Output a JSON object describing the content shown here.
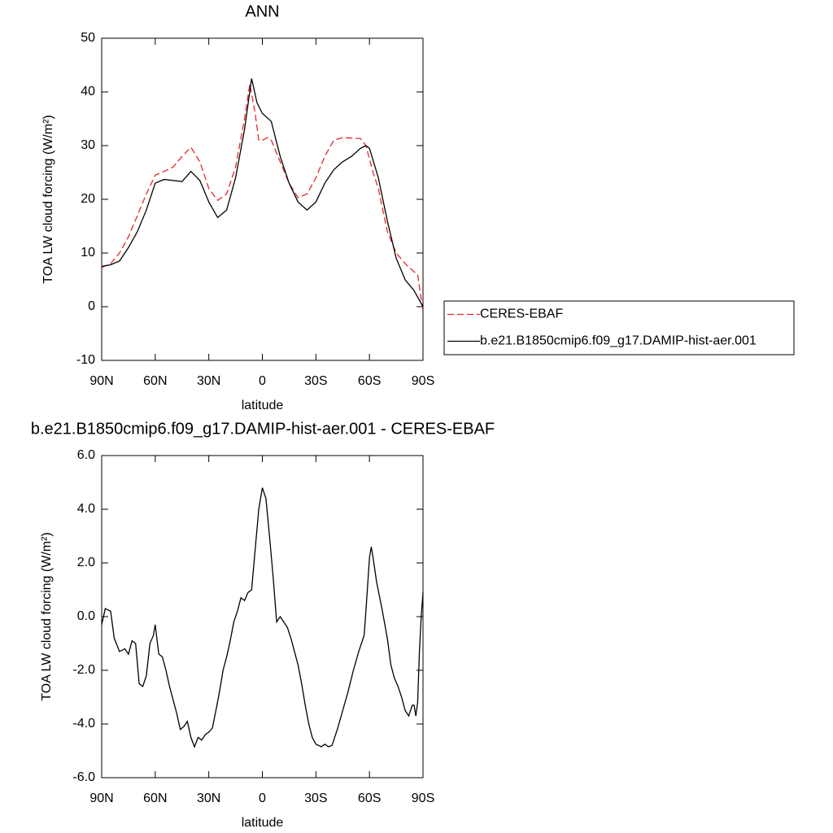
{
  "chart_data": [
    {
      "type": "line",
      "title": "ANN",
      "x_label": "latitude",
      "y_label": "TOA LW cloud forcing (W/m²)",
      "xlim": [
        90,
        -90
      ],
      "xticks": [
        {
          "value": 90,
          "label": "90N"
        },
        {
          "value": 60,
          "label": "60N"
        },
        {
          "value": 30,
          "label": "30N"
        },
        0,
        {
          "value": -30,
          "label": "30S"
        },
        {
          "value": -60,
          "label": "60S"
        },
        {
          "value": -90,
          "label": "90S"
        }
      ],
      "ylim": [
        -10,
        50
      ],
      "yticks": [
        -10,
        0,
        10,
        20,
        30,
        40,
        50
      ],
      "legend": "right",
      "series": [
        {
          "name": "CERES-EBAF",
          "color": "#e8262b",
          "dash": true,
          "x": [
            90,
            85,
            80,
            75,
            70,
            65,
            60,
            55,
            50,
            45,
            40,
            35,
            30,
            25,
            20,
            15,
            10,
            7,
            4,
            2,
            0,
            -3,
            -5,
            -10,
            -15,
            -20,
            -25,
            -30,
            -35,
            -40,
            -45,
            -55,
            -58,
            -62,
            -65,
            -70,
            -75,
            -80,
            -85,
            -87,
            -90
          ],
          "values": [
            7.3,
            8,
            10,
            13,
            17,
            21,
            24.5,
            25.2,
            26,
            28,
            29.7,
            27,
            22,
            19.8,
            21,
            26,
            35,
            41.5,
            36,
            31,
            31,
            31.5,
            31,
            27,
            23,
            20.3,
            21,
            24,
            28,
            31,
            31.5,
            31.3,
            30,
            25,
            22,
            14,
            10,
            8,
            6.5,
            6,
            -1
          ]
        },
        {
          "name": "b.e21.B1850cmip6.f09_g17.DAMIP-hist-aer.001",
          "color": "#000000",
          "dash": false,
          "x": [
            90,
            85,
            80,
            75,
            70,
            65,
            60,
            55,
            50,
            45,
            40,
            35,
            30,
            25,
            20,
            15,
            10,
            6,
            3,
            0,
            -5,
            -10,
            -15,
            -20,
            -25,
            -30,
            -35,
            -40,
            -45,
            -50,
            -55,
            -58,
            -60,
            -65,
            -70,
            -75,
            -80,
            -85,
            -90
          ],
          "values": [
            7.5,
            7.8,
            8.5,
            11,
            14,
            18,
            23,
            23.7,
            23.5,
            23.3,
            25.2,
            23.5,
            19.5,
            16.6,
            18,
            24,
            33,
            42.5,
            38,
            36,
            34.5,
            28,
            23,
            19.5,
            18,
            19.5,
            23,
            25.5,
            27,
            28,
            29.5,
            30,
            29.5,
            24,
            16,
            9,
            5,
            3,
            0
          ]
        }
      ]
    },
    {
      "type": "line",
      "title": "b.e21.B1850cmip6.f09_g17.DAMIP-hist-aer.001 - CERES-EBAF",
      "x_label": "latitude",
      "y_label": "TOA LW cloud forcing (W/m²)",
      "xlim": [
        90,
        -90
      ],
      "xticks": [
        {
          "value": 90,
          "label": "90N"
        },
        {
          "value": 60,
          "label": "60N"
        },
        {
          "value": 30,
          "label": "30N"
        },
        0,
        {
          "value": -30,
          "label": "30S"
        },
        {
          "value": -60,
          "label": "60S"
        },
        {
          "value": -90,
          "label": "90S"
        }
      ],
      "ylim": [
        -6,
        6
      ],
      "yticks": [
        {
          "value": -6,
          "label": "-6.0"
        },
        {
          "value": -4,
          "label": "-4.0"
        },
        {
          "value": -2,
          "label": "-2.0"
        },
        {
          "value": 0,
          "label": "0.0"
        },
        {
          "value": 2,
          "label": "2.0"
        },
        {
          "value": 4,
          "label": "4.0"
        },
        {
          "value": 6,
          "label": "6.0"
        }
      ],
      "series": [
        {
          "color": "#000000",
          "dash": false,
          "x": [
            90,
            88,
            85,
            83,
            80,
            77,
            75,
            73,
            71,
            69,
            67,
            65,
            63,
            61,
            60,
            58,
            56,
            54,
            52,
            50,
            48,
            46,
            44,
            42,
            40,
            38,
            36,
            34,
            32,
            30,
            28,
            26,
            24,
            22,
            20,
            18,
            16,
            14,
            12,
            10,
            8,
            6,
            4,
            2,
            0,
            -2,
            -4,
            -6,
            -8,
            -10,
            -12,
            -14,
            -16,
            -18,
            -20,
            -22,
            -24,
            -26,
            -28,
            -30,
            -33,
            -35,
            -37,
            -39,
            -42,
            -45,
            -48,
            -51,
            -54,
            -57,
            -58,
            -60,
            -61,
            -62,
            -64,
            -67,
            -70,
            -72,
            -74,
            -76,
            -78,
            -80,
            -82,
            -84,
            -85,
            -86,
            -87,
            -88,
            -89,
            -90
          ],
          "values": [
            -0.3,
            0.3,
            0.2,
            -0.8,
            -1.3,
            -1.2,
            -1.4,
            -0.9,
            -1.0,
            -2.5,
            -2.6,
            -2.2,
            -1.0,
            -0.7,
            -0.3,
            -1.4,
            -1.5,
            -2.0,
            -2.6,
            -3.1,
            -3.6,
            -4.2,
            -4.1,
            -3.9,
            -4.5,
            -4.85,
            -4.5,
            -4.6,
            -4.4,
            -4.3,
            -4.15,
            -3.5,
            -2.8,
            -2.0,
            -1.5,
            -0.9,
            -0.2,
            0.2,
            0.7,
            0.6,
            0.9,
            1.0,
            2.5,
            4.0,
            4.8,
            4.4,
            3.0,
            1.5,
            -0.2,
            0.0,
            -0.2,
            -0.4,
            -0.8,
            -1.3,
            -1.8,
            -2.5,
            -3.3,
            -4.0,
            -4.5,
            -4.75,
            -4.85,
            -4.75,
            -4.85,
            -4.8,
            -4.2,
            -3.5,
            -2.8,
            -2.0,
            -1.3,
            -0.7,
            0.2,
            2.2,
            2.6,
            2.2,
            1.3,
            0.3,
            -0.8,
            -1.8,
            -2.3,
            -2.6,
            -3.0,
            -3.5,
            -3.7,
            -3.3,
            -3.3,
            -3.7,
            -3.2,
            -1.3,
            0.0,
            0.9
          ]
        }
      ]
    }
  ]
}
